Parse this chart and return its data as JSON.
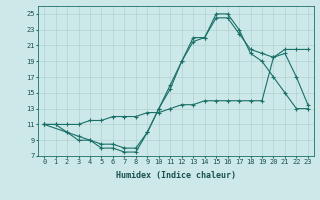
{
  "xlabel": "Humidex (Indice chaleur)",
  "background_color": "#cce8e8",
  "grid_color": "#aacccc",
  "line_color": "#1a7068",
  "xlim": [
    -0.5,
    23.5
  ],
  "ylim": [
    7,
    26
  ],
  "xticks": [
    0,
    1,
    2,
    3,
    4,
    5,
    6,
    7,
    8,
    9,
    10,
    11,
    12,
    13,
    14,
    15,
    16,
    17,
    18,
    19,
    20,
    21,
    22,
    23
  ],
  "yticks": [
    7,
    9,
    11,
    13,
    15,
    17,
    19,
    21,
    23,
    25
  ],
  "line1_x": [
    0,
    1,
    2,
    3,
    4,
    5,
    6,
    7,
    8,
    9,
    10,
    11,
    12,
    13,
    14,
    15,
    16,
    17,
    18,
    19,
    20,
    21,
    22,
    23
  ],
  "line1_y": [
    11,
    11,
    10,
    9,
    9,
    8,
    8,
    7.5,
    7.5,
    10,
    13,
    16,
    19,
    22,
    22,
    25,
    25,
    23,
    20,
    19,
    17,
    15,
    13,
    13
  ],
  "line2_x": [
    0,
    2,
    3,
    4,
    5,
    6,
    7,
    8,
    9,
    10,
    11,
    12,
    13,
    14,
    15,
    16,
    17,
    18,
    19,
    20,
    21,
    22,
    23
  ],
  "line2_y": [
    11,
    10,
    9.5,
    9,
    8.5,
    8.5,
    8,
    8,
    10,
    13,
    15.5,
    19,
    21.5,
    22,
    24.5,
    24.5,
    22.5,
    20.5,
    20,
    19.5,
    20.5,
    20.5,
    20.5
  ],
  "line3_x": [
    0,
    1,
    2,
    3,
    4,
    5,
    6,
    7,
    8,
    9,
    10,
    11,
    12,
    13,
    14,
    15,
    16,
    17,
    18,
    19,
    20,
    21,
    22,
    23
  ],
  "line3_y": [
    11,
    11,
    11,
    11,
    11.5,
    11.5,
    12,
    12,
    12,
    12.5,
    12.5,
    13,
    13.5,
    13.5,
    14,
    14,
    14,
    14,
    14,
    14,
    19.5,
    20,
    17,
    13.5
  ],
  "xlabel_fontsize": 6,
  "tick_fontsize": 5
}
